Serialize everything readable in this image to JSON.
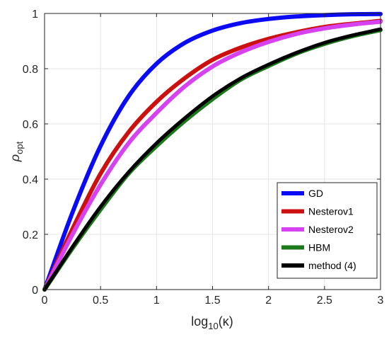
{
  "chart_data": {
    "type": "line",
    "xlabel_main": "log",
    "xlabel_sub": "10",
    "xlabel_arg": "(κ)",
    "ylabel_main": "ρ",
    "ylabel_sub": "opt",
    "xlim": [
      0,
      3
    ],
    "ylim": [
      0,
      1
    ],
    "xticks": [
      0,
      0.5,
      1,
      1.5,
      2,
      2.5,
      3
    ],
    "yticks": [
      0,
      0.2,
      0.4,
      0.6,
      0.8,
      1
    ],
    "xtick_labels": [
      "0",
      "0.5",
      "1",
      "1.5",
      "2",
      "2.5",
      "3"
    ],
    "ytick_labels": [
      "0",
      "0.2",
      "0.4",
      "0.6",
      "0.8",
      "1"
    ],
    "grid": true,
    "legend_position": "bottom-right",
    "x": [
      0,
      0.25,
      0.5,
      0.75,
      1,
      1.25,
      1.5,
      1.75,
      2,
      2.25,
      2.5,
      2.75,
      3
    ],
    "series": [
      {
        "name": "GD",
        "color": "#0a0af5",
        "values": [
          0.0,
          0.28,
          0.52,
          0.7,
          0.818,
          0.893,
          0.938,
          0.965,
          0.98,
          0.989,
          0.994,
          0.997,
          0.998
        ]
      },
      {
        "name": "Nesterov1",
        "color": "#cc1010",
        "values": [
          0.0,
          0.22,
          0.42,
          0.57,
          0.68,
          0.765,
          0.832,
          0.876,
          0.908,
          0.932,
          0.951,
          0.963,
          0.973
        ]
      },
      {
        "name": "Nesterov2",
        "color": "#d642f0",
        "values": [
          0.0,
          0.2,
          0.38,
          0.53,
          0.64,
          0.735,
          0.808,
          0.859,
          0.897,
          0.926,
          0.946,
          0.96,
          0.97
        ]
      },
      {
        "name": "HBM",
        "color": "#1a7a1a",
        "values": [
          0.0,
          0.15,
          0.29,
          0.42,
          0.52,
          0.61,
          0.69,
          0.76,
          0.81,
          0.855,
          0.89,
          0.918,
          0.94
        ]
      },
      {
        "name": "method (4)",
        "color": "#000000",
        "values": [
          0.0,
          0.155,
          0.3,
          0.425,
          0.53,
          0.62,
          0.7,
          0.765,
          0.815,
          0.858,
          0.894,
          0.921,
          0.943
        ]
      }
    ]
  }
}
